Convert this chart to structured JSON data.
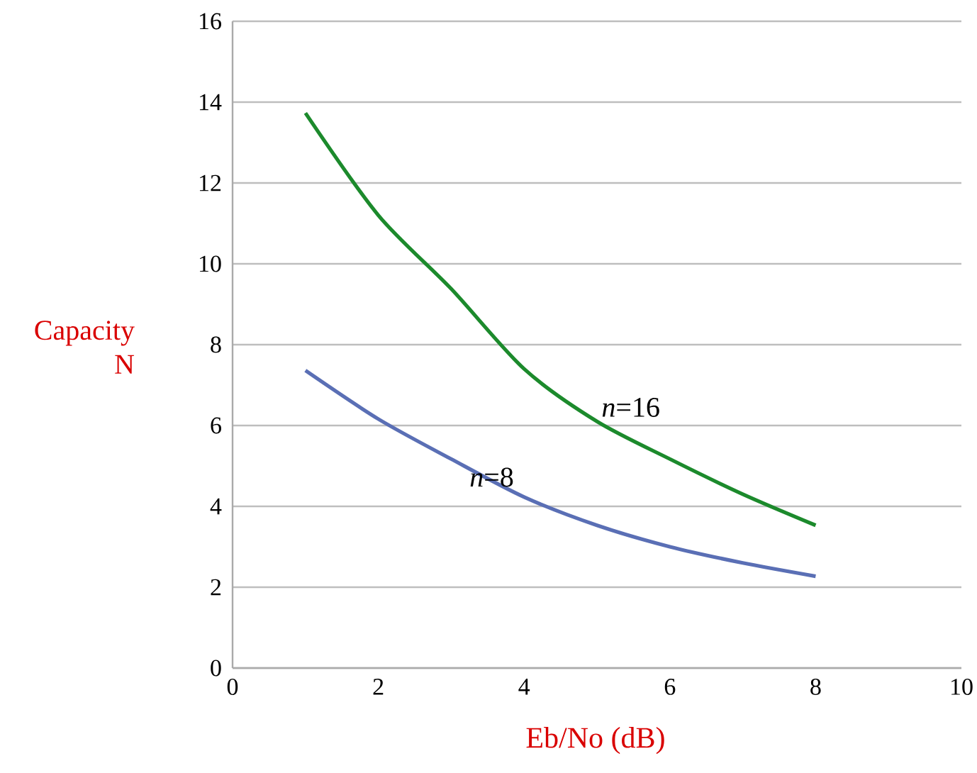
{
  "chart_data": {
    "type": "line",
    "xlabel": "Eb/No (dB)",
    "ylabel": "Capacity N",
    "x": [
      1,
      2,
      3,
      4,
      5,
      6,
      7,
      8
    ],
    "series": [
      {
        "name": "*n*=8",
        "color": "#5a6fb5",
        "values": [
          7.36,
          6.16,
          5.17,
          4.23,
          3.53,
          3.0,
          2.6,
          2.27
        ]
      },
      {
        "name": "*n*=16",
        "color": "#1c8a2c",
        "values": [
          13.73,
          11.2,
          9.38,
          7.4,
          6.1,
          5.17,
          4.3,
          3.53
        ]
      }
    ],
    "xlim": [
      0,
      10
    ],
    "ylim": [
      0,
      16
    ],
    "xticks": [
      0,
      2,
      4,
      6,
      8,
      10
    ],
    "yticks": [
      0,
      2,
      4,
      6,
      8,
      10,
      12,
      14,
      16
    ],
    "grid": "y",
    "legend": false,
    "marker": "none",
    "line_style": "solid"
  }
}
